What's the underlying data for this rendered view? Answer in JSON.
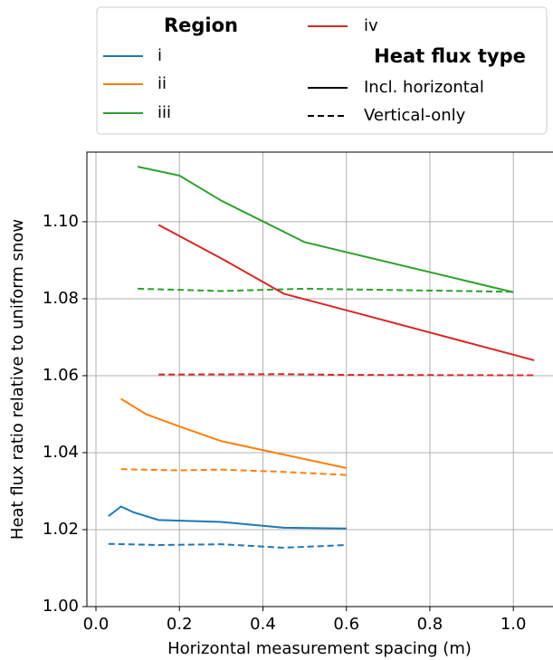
{
  "chart_data": {
    "type": "line",
    "xlabel": "Horizontal measurement spacing (m)",
    "ylabel": "Heat flux ratio relative to uniform snow",
    "xlim": [
      -0.0217,
      1.095
    ],
    "ylim": [
      1.0,
      1.1181
    ],
    "xticks": [
      {
        "value": 0,
        "label": "0.0"
      },
      0.2,
      0.4,
      0.6,
      0.8,
      {
        "value": 1,
        "label": "1.0"
      }
    ],
    "yticks": [
      {
        "value": 1,
        "label": "1.00"
      },
      1.02,
      1.04,
      1.06,
      1.08,
      {
        "value": 1.1,
        "label": "1.10"
      }
    ],
    "grid": true,
    "legend_title": "Region",
    "line_types_title": "Heat flux type",
    "line_types": [
      {
        "name": "Incl. horizontal",
        "dash": "solid"
      },
      {
        "name": "Vertical-only",
        "dash": "dashed"
      }
    ],
    "series": [
      {
        "name": "i",
        "color": "#1f77b4",
        "lines": [
          {
            "x": [
              0.03,
              0.06,
              0.09,
              0.15,
              0.3,
              0.45,
              0.6
            ],
            "values": [
              1.0235,
              1.026,
              1.0245,
              1.0225,
              1.022,
              1.0205,
              1.0203
            ]
          },
          {
            "x": [
              0.03,
              0.15,
              0.3,
              0.45,
              0.6
            ],
            "values": [
              1.0163,
              1.016,
              1.0162,
              1.0153,
              1.016
            ]
          }
        ]
      },
      {
        "name": "ii",
        "color": "#ff7f0e",
        "lines": [
          {
            "x": [
              0.06,
              0.12,
              0.2,
              0.3,
              0.45,
              0.6
            ],
            "values": [
              1.054,
              1.05,
              1.0468,
              1.043,
              1.0395,
              1.036
            ]
          },
          {
            "x": [
              0.06,
              0.2,
              0.3,
              0.45,
              0.6
            ],
            "values": [
              1.0357,
              1.0354,
              1.0356,
              1.035,
              1.0342
            ]
          }
        ]
      },
      {
        "name": "iii",
        "color": "#2ca02c",
        "lines": [
          {
            "x": [
              0.1,
              0.2,
              0.3,
              0.5,
              1.0
            ],
            "values": [
              1.1143,
              1.112,
              1.1055,
              1.0947,
              1.0817
            ]
          },
          {
            "x": [
              0.1,
              0.3,
              0.5,
              1.0
            ],
            "values": [
              1.0826,
              1.082,
              1.0826,
              1.0818
            ]
          }
        ]
      },
      {
        "name": "iv",
        "color": "#d62728",
        "lines": [
          {
            "x": [
              0.15,
              0.3,
              0.45,
              0.6,
              1.05
            ],
            "values": [
              1.0992,
              1.0905,
              1.0813,
              1.077,
              1.064
            ]
          },
          {
            "x": [
              0.15,
              0.45,
              0.6,
              1.05
            ],
            "values": [
              1.0603,
              1.0604,
              1.0602,
              1.0601
            ]
          }
        ]
      }
    ]
  }
}
